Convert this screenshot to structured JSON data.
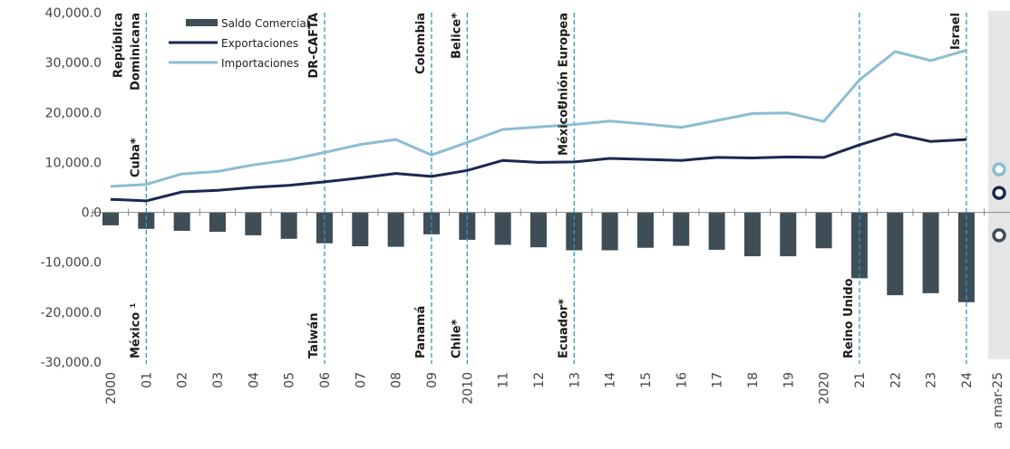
{
  "chart_data": {
    "type": "bar",
    "categories": [
      "2000",
      "01",
      "02",
      "03",
      "04",
      "05",
      "06",
      "07",
      "08",
      "09",
      "2010",
      "11",
      "12",
      "13",
      "14",
      "15",
      "16",
      "17",
      "18",
      "19",
      "2020",
      "21",
      "22",
      "23",
      "24"
    ],
    "extra_category": "a mar-25",
    "ylim": [
      -30000,
      40000
    ],
    "yticks": [
      "40,000.0",
      "30,000.0",
      "20,000.0",
      "10,000.0",
      "0.0",
      "-10,000.0",
      "-20,000.0",
      "-30,000.0"
    ],
    "ytick_values": [
      40000,
      30000,
      20000,
      10000,
      0,
      -10000,
      -20000,
      -30000
    ],
    "legend_position": "top-left",
    "series": [
      {
        "name": "Saldo Comercial",
        "kind": "bar",
        "color": "#3f4d57",
        "values": [
          -2600,
          -3300,
          -3700,
          -3900,
          -4600,
          -5300,
          -6200,
          -6800,
          -6900,
          -4400,
          -5500,
          -6500,
          -7000,
          -7600,
          -7600,
          -7100,
          -6700,
          -7500,
          -8800,
          -8800,
          -7200,
          -13200,
          -16600,
          -16200,
          -18000
        ]
      },
      {
        "name": "Exportaciones",
        "kind": "line",
        "color": "#1b2951",
        "values": [
          2600,
          2300,
          4100,
          4400,
          5000,
          5400,
          6100,
          6900,
          7800,
          7200,
          8400,
          10400,
          10000,
          10100,
          10800,
          10600,
          10400,
          11000,
          10900,
          11100,
          11000,
          13500,
          15700,
          14200,
          14600
        ]
      },
      {
        "name": "Importaciones",
        "kind": "line",
        "color": "#8bbdd3",
        "values": [
          5200,
          5600,
          7700,
          8200,
          9500,
          10500,
          12000,
          13600,
          14600,
          11500,
          14000,
          16600,
          17100,
          17600,
          18300,
          17700,
          17000,
          18400,
          19800,
          19900,
          18200,
          26500,
          32200,
          30400,
          32500
        ]
      }
    ],
    "ytd_markers": [
      {
        "series": "Importaciones",
        "value": 8600,
        "color": "#8bbdd3"
      },
      {
        "series": "Exportaciones",
        "value": 3900,
        "color": "#1b2951"
      },
      {
        "series": "Saldo Comercial",
        "value": -4600,
        "color": "#3f4d57"
      }
    ],
    "agreements": [
      {
        "category": "01",
        "upper": [
          "República",
          "Dominicana"
        ],
        "upper_small": "Cuba*",
        "lower": "México ¹"
      },
      {
        "category": "06",
        "upper": [
          "DR-CAFTA"
        ],
        "lower": "Taiwán"
      },
      {
        "category": "09",
        "upper": [
          "Colombia"
        ],
        "lower": "Panamá"
      },
      {
        "category": "2010",
        "upper": [
          "Belice*"
        ],
        "lower": "Chile*"
      },
      {
        "category": "13",
        "upper": [
          "Unión Europea"
        ],
        "upper_small": "México²",
        "lower": "Ecuador*"
      },
      {
        "category": "21",
        "upper": [],
        "lower": "Reino Unido"
      },
      {
        "category": "24",
        "upper": [
          "Israel"
        ],
        "lower": ""
      }
    ]
  },
  "colors": {
    "bar": "#3f4d57",
    "exports": "#1b2951",
    "imports": "#8bbdd3",
    "agreement_line": "#2b9ac4",
    "axis": "#888888",
    "ytd_panel": "#e6e6e6"
  }
}
